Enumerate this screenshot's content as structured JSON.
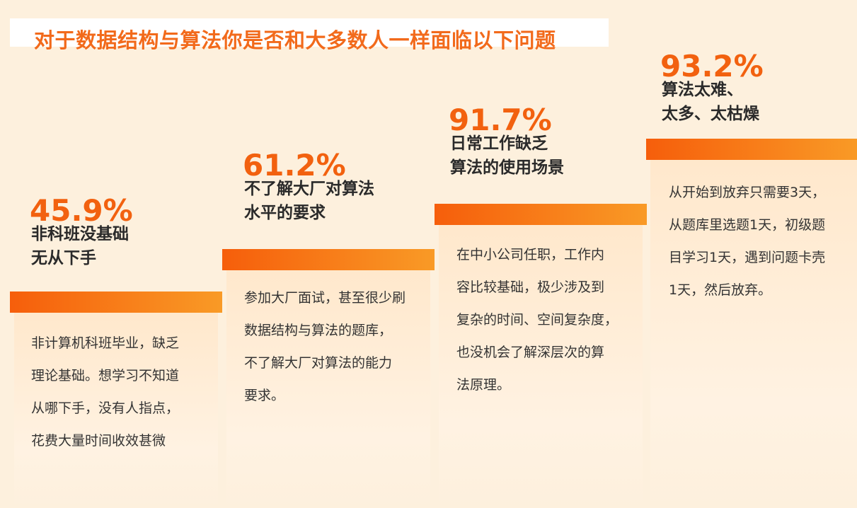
{
  "title": "对于数据结构与算法你是否和大多数人一样面临以下问题",
  "steps": [
    {
      "percent": "45.9%",
      "heading": [
        "非科班没基础",
        "无从下手"
      ],
      "description": [
        "非计算机科班毕业，缺乏",
        "理论基础。想学习不知道",
        "从哪下手，没有人指点，",
        "花费大量时间收效甚微"
      ]
    },
    {
      "percent": "61.2%",
      "heading": [
        "不了解大厂对算法",
        "水平的要求"
      ],
      "description": [
        "参加大厂面试，甚至很少刷",
        "数据结构与算法的题库，",
        "不了解大厂对算法的能力",
        "要求。"
      ]
    },
    {
      "percent": "91.7%",
      "heading": [
        "日常工作缺乏",
        "算法的使用场景"
      ],
      "description": [
        "在中小公司任职，工作内",
        "容比较基础，极少涉及到",
        "复杂的时间、空间复杂度，",
        "也没机会了解深层次的算",
        "法原理。"
      ]
    },
    {
      "percent": "93.2%",
      "heading": [
        "算法太难、",
        "太多、太枯燥"
      ],
      "description": [
        "从开始到放弃只需要3天，",
        "从题库里选题1天，初级题",
        "目学习1天，遇到问题卡壳",
        "1天，然后放弃。"
      ]
    }
  ]
}
